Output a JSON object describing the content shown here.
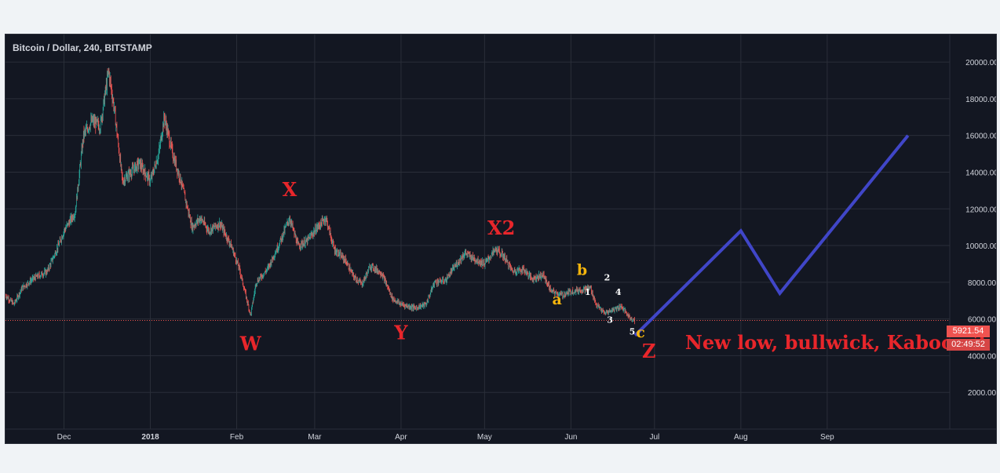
{
  "chart_header": {
    "title": "Bitcoin / Dollar, 240, BITSTAMP"
  },
  "colors": {
    "background": "#131722",
    "grid": "#2a2e39",
    "up_candle": "#26a69a",
    "down_candle": "#ef5350",
    "wave_label_red": "#e8262b",
    "wave_label_yellow": "#f5b50c",
    "wave_label_white": "#ffffff",
    "projection_line": "#4046c8",
    "price_line": "#ef5350"
  },
  "price_axis": {
    "current_price": "5921.54",
    "countdown": "02:49:52"
  },
  "chart_data": {
    "type": "candlestick",
    "symbol": "Bitcoin / Dollar",
    "interval": "240",
    "exchange": "BITSTAMP",
    "ylim": [
      0,
      21500
    ],
    "y_ticks": [
      "2000.00",
      "4000.00",
      "6000.00",
      "8000.00",
      "10000.00",
      "12000.00",
      "14000.00",
      "16000.00",
      "18000.00",
      "20000.00"
    ],
    "x_ticks": [
      "Dec",
      "2018",
      "Feb",
      "Mar",
      "Apr",
      "May",
      "Jun",
      "Jul",
      "Aug",
      "Sep"
    ],
    "x_range": [
      "2017-11-10",
      "2018-10-15"
    ],
    "tick_dates": [
      "2017-12-01",
      "2018-01-01",
      "2018-02-01",
      "2018-03-01",
      "2018-04-01",
      "2018-05-01",
      "2018-06-01",
      "2018-07-01",
      "2018-08-01",
      "2018-09-01"
    ],
    "current_price": 5921.54,
    "price_path": [
      [
        "2017-11-10",
        7300
      ],
      [
        "2017-11-13",
        6800
      ],
      [
        "2017-11-16",
        7700
      ],
      [
        "2017-11-20",
        8200
      ],
      [
        "2017-11-25",
        8600
      ],
      [
        "2017-11-29",
        10000
      ],
      [
        "2017-12-01",
        10800
      ],
      [
        "2017-12-05",
        11800
      ],
      [
        "2017-12-08",
        16000
      ],
      [
        "2017-12-11",
        16800
      ],
      [
        "2017-12-14",
        16500
      ],
      [
        "2017-12-17",
        19500
      ],
      [
        "2017-12-19",
        17500
      ],
      [
        "2017-12-22",
        13500
      ],
      [
        "2017-12-25",
        14000
      ],
      [
        "2017-12-28",
        14500
      ],
      [
        "2018-01-01",
        13500
      ],
      [
        "2018-01-04",
        15000
      ],
      [
        "2018-01-06",
        17000
      ],
      [
        "2018-01-09",
        15000
      ],
      [
        "2018-01-12",
        13500
      ],
      [
        "2018-01-16",
        11000
      ],
      [
        "2018-01-19",
        11500
      ],
      [
        "2018-01-22",
        10800
      ],
      [
        "2018-01-26",
        11200
      ],
      [
        "2018-01-30",
        10000
      ],
      [
        "2018-02-02",
        8700
      ],
      [
        "2018-02-06",
        6200
      ],
      [
        "2018-02-08",
        8000
      ],
      [
        "2018-02-12",
        8700
      ],
      [
        "2018-02-16",
        10000
      ],
      [
        "2018-02-20",
        11500
      ],
      [
        "2018-02-23",
        10000
      ],
      [
        "2018-02-26",
        10200
      ],
      [
        "2018-03-02",
        11000
      ],
      [
        "2018-03-05",
        11500
      ],
      [
        "2018-03-08",
        9800
      ],
      [
        "2018-03-12",
        9200
      ],
      [
        "2018-03-15",
        8300
      ],
      [
        "2018-03-18",
        7900
      ],
      [
        "2018-03-21",
        8900
      ],
      [
        "2018-03-25",
        8500
      ],
      [
        "2018-03-29",
        7100
      ],
      [
        "2018-04-01",
        6800
      ],
      [
        "2018-04-06",
        6600
      ],
      [
        "2018-04-10",
        6800
      ],
      [
        "2018-04-13",
        8000
      ],
      [
        "2018-04-17",
        8100
      ],
      [
        "2018-04-20",
        8800
      ],
      [
        "2018-04-24",
        9600
      ],
      [
        "2018-04-27",
        9300
      ],
      [
        "2018-05-01",
        9000
      ],
      [
        "2018-05-05",
        9800
      ],
      [
        "2018-05-08",
        9400
      ],
      [
        "2018-05-11",
        8600
      ],
      [
        "2018-05-15",
        8700
      ],
      [
        "2018-05-18",
        8200
      ],
      [
        "2018-05-22",
        8400
      ],
      [
        "2018-05-25",
        7500
      ],
      [
        "2018-05-29",
        7300
      ],
      [
        "2018-06-01",
        7500
      ],
      [
        "2018-06-05",
        7600
      ],
      [
        "2018-06-08",
        7700
      ],
      [
        "2018-06-10",
        6800
      ],
      [
        "2018-06-13",
        6300
      ],
      [
        "2018-06-16",
        6500
      ],
      [
        "2018-06-19",
        6700
      ],
      [
        "2018-06-22",
        6100
      ],
      [
        "2018-06-24",
        5900
      ]
    ],
    "projection": [
      [
        "2018-06-24",
        5100
      ],
      [
        "2018-08-01",
        10800
      ],
      [
        "2018-08-15",
        7400
      ],
      [
        "2018-09-30",
        16000
      ]
    ],
    "annotations": [
      {
        "text": "W",
        "date": "2018-02-06",
        "price": 4300,
        "color": "red",
        "size": "large"
      },
      {
        "text": "X",
        "date": "2018-02-20",
        "price": 12700,
        "color": "red",
        "size": "large"
      },
      {
        "text": "Y",
        "date": "2018-04-01",
        "price": 4900,
        "color": "red",
        "size": "large"
      },
      {
        "text": "X2",
        "date": "2018-05-07",
        "price": 10600,
        "color": "red",
        "size": "large"
      },
      {
        "text": "b",
        "date": "2018-06-05",
        "price": 8400,
        "color": "yellow",
        "size": "medium"
      },
      {
        "text": "2",
        "date": "2018-06-14",
        "price": 8100,
        "color": "white",
        "size": "small"
      },
      {
        "text": "a",
        "date": "2018-05-27",
        "price": 6800,
        "color": "yellow",
        "size": "medium"
      },
      {
        "text": "1",
        "date": "2018-06-07",
        "price": 7300,
        "color": "white",
        "size": "small"
      },
      {
        "text": "4",
        "date": "2018-06-18",
        "price": 7300,
        "color": "white",
        "size": "small"
      },
      {
        "text": "3",
        "date": "2018-06-15",
        "price": 5800,
        "color": "white",
        "size": "small"
      },
      {
        "text": "5",
        "date": "2018-06-23",
        "price": 5150,
        "color": "white",
        "size": "small"
      },
      {
        "text": "c",
        "date": "2018-06-26",
        "price": 5000,
        "color": "yellow",
        "size": "medium"
      },
      {
        "text": "Z",
        "date": "2018-06-29",
        "price": 3900,
        "color": "red",
        "size": "large"
      },
      {
        "text": "New low, bullwick, Kaboom?",
        "date": "2018-07-12",
        "price": 4350,
        "color": "red",
        "size": "large"
      }
    ]
  }
}
